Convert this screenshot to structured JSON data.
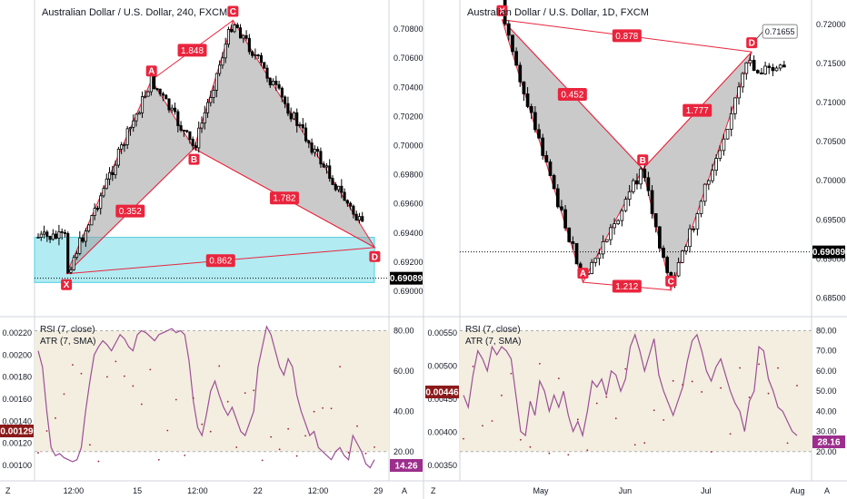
{
  "chart_data": [
    {
      "type": "candlestick",
      "title": "Australian Dollar / U.S. Dollar, 240, FXCM",
      "ylim": [
        0.689,
        0.7095
      ],
      "price_ticks": [
        "0.70800",
        "0.70600",
        "0.70400",
        "0.70200",
        "0.70000",
        "0.69800",
        "0.69600",
        "0.69400",
        "0.69200",
        "0.69000"
      ],
      "tick_values": [
        0.708,
        0.706,
        0.704,
        0.702,
        0.7,
        0.698,
        0.696,
        0.694,
        0.692,
        0.69
      ],
      "current_price": "0.69089",
      "current_value": 0.69089,
      "time_labels": [
        "12:00",
        "15",
        "12:00",
        "22",
        "12:00",
        "29"
      ],
      "time_positions": [
        0.11,
        0.29,
        0.46,
        0.63,
        0.8,
        0.97
      ],
      "pattern": {
        "points": [
          {
            "name": "X",
            "pos": 0.09,
            "value": 0.6912
          },
          {
            "name": "A",
            "pos": 0.33,
            "value": 0.7045
          },
          {
            "name": "B",
            "pos": 0.45,
            "value": 0.6998
          },
          {
            "name": "C",
            "pos": 0.56,
            "value": 0.7086
          },
          {
            "name": "D",
            "pos": 0.96,
            "value": 0.693
          }
        ],
        "ratios": [
          "0.352",
          "1.848",
          "1.782",
          "0.862"
        ]
      },
      "zone": {
        "top": 0.6937,
        "bottom": 0.6906
      },
      "indicator": {
        "label_rsi": "RSI (7, close)",
        "label_atr": "ATR (7, SMA)",
        "left_ticks": [
          "0.00220",
          "0.00200",
          "0.00180",
          "0.00160",
          "0.00140",
          "0.00120",
          "0.00100"
        ],
        "right_ticks": [
          "80.00",
          "60.00",
          "40.00",
          "20.00"
        ],
        "atr_value": "0.00129",
        "rsi_value": "14.26",
        "rsi_series": [
          70,
          62,
          40,
          22,
          18,
          19,
          17,
          16,
          15,
          16,
          22,
          40,
          55,
          68,
          72,
          75,
          73,
          70,
          74,
          78,
          76,
          72,
          70,
          78,
          80,
          79,
          77,
          75,
          78,
          79,
          80,
          81,
          79,
          80,
          78,
          65,
          45,
          32,
          28,
          38,
          50,
          55,
          48,
          42,
          38,
          42,
          36,
          30,
          28,
          34,
          40,
          62,
          72,
          82,
          78,
          70,
          62,
          58,
          66,
          62,
          48,
          40,
          34,
          28,
          30,
          22,
          20,
          18,
          16,
          20,
          22,
          18,
          16,
          28,
          24,
          20,
          14,
          12,
          16
        ]
      }
    },
    {
      "type": "candlestick",
      "title": "Australian Dollar / U.S. Dollar, 1D, FXCM",
      "ylim": [
        0.684,
        0.7222
      ],
      "price_ticks": [
        "0.72000",
        "0.71500",
        "0.71000",
        "0.70500",
        "0.70000",
        "0.69500",
        "0.69000",
        "0.68500"
      ],
      "tick_values": [
        0.72,
        0.715,
        0.71,
        0.705,
        0.7,
        0.695,
        0.69,
        0.685
      ],
      "current_price": "0.69089",
      "current_value": 0.69089,
      "time_labels": [
        "May",
        "Jun",
        "Jul",
        "Aug"
      ],
      "time_positions": [
        0.23,
        0.47,
        0.7,
        0.96
      ],
      "pattern": {
        "points": [
          {
            "name": "X",
            "pos": 0.12,
            "value": 0.7206
          },
          {
            "name": "A",
            "pos": 0.35,
            "value": 0.687
          },
          {
            "name": "B",
            "pos": 0.52,
            "value": 0.7015
          },
          {
            "name": "C",
            "pos": 0.6,
            "value": 0.686
          },
          {
            "name": "D",
            "pos": 0.83,
            "value": 0.7165
          }
        ],
        "ratios": [
          "0.452",
          "1.777",
          "0.878",
          "1.212"
        ],
        "d_label": "0.71655"
      },
      "indicator": {
        "label_rsi": "RSI (7, close)",
        "label_atr": "ATR (7, SMA)",
        "left_ticks": [
          "0.00550",
          "0.00500",
          "0.00450",
          "0.00400",
          "0.00350"
        ],
        "right_ticks": [
          "80.00",
          "70.00",
          "60.00",
          "50.00",
          "40.00",
          "30.00",
          "20.00"
        ],
        "atr_value": "0.00446",
        "rsi_value": "28.16",
        "rsi_series": [
          48,
          42,
          58,
          70,
          66,
          60,
          72,
          68,
          72,
          70,
          66,
          48,
          30,
          28,
          45,
          38,
          55,
          50,
          40,
          48,
          42,
          50,
          38,
          30,
          35,
          28,
          40,
          55,
          52,
          56,
          48,
          60,
          58,
          50,
          56,
          72,
          78,
          70,
          60,
          68,
          76,
          58,
          50,
          44,
          38,
          45,
          52,
          65,
          75,
          78,
          70,
          60,
          55,
          62,
          66,
          58,
          50,
          44,
          40,
          30,
          45,
          50,
          72,
          70,
          56,
          50,
          42,
          40,
          35,
          30,
          28
        ]
      },
      "xlabel_extra": "A"
    }
  ],
  "chart_labels": {
    "z": "Z",
    "a": "A",
    "pane_left_rsi": "RSI (7, close)",
    "pane_left_atr": "ATR (7, SMA)"
  },
  "colors": {
    "up": "#ffffff",
    "down": "#000000",
    "pattern_line": "#e9253d",
    "pattern_fill": "#9e9e9e",
    "zone": "#b2ebf2",
    "rsi": "#9c4f96",
    "rsi_band": "#f3eee0",
    "badge": "#e9253d"
  }
}
